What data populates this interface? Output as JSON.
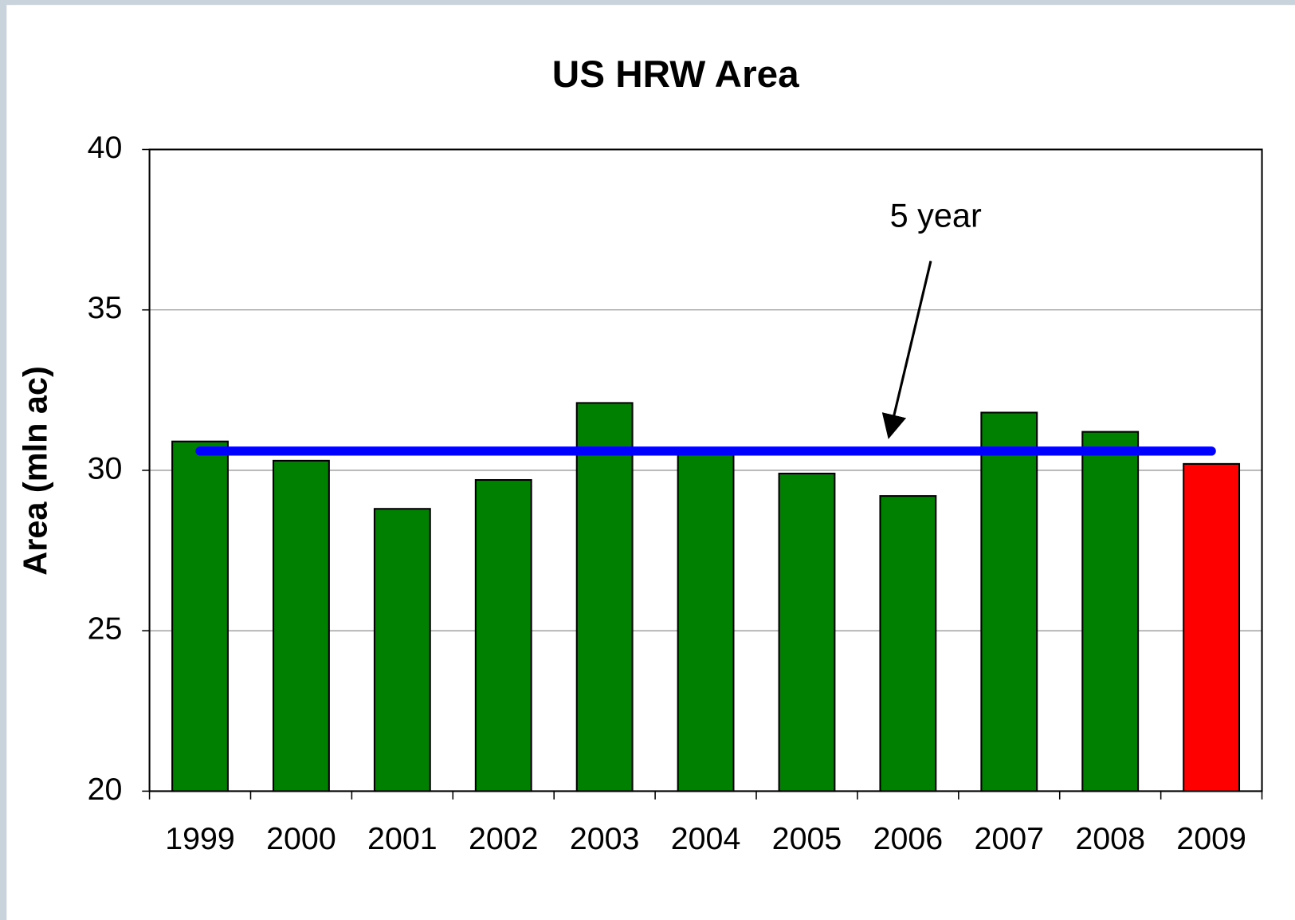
{
  "chart_data": {
    "type": "bar",
    "title": "US HRW Area",
    "y_label": "Area (mln ac)",
    "categories": [
      "1999",
      "2000",
      "2001",
      "2002",
      "2003",
      "2004",
      "2005",
      "2006",
      "2007",
      "2008",
      "2009"
    ],
    "values": [
      30.9,
      30.3,
      28.8,
      29.7,
      32.1,
      30.7,
      29.9,
      29.2,
      31.8,
      31.2,
      30.2
    ],
    "colors": [
      "#008000",
      "#008000",
      "#008000",
      "#008000",
      "#008000",
      "#008000",
      "#008000",
      "#008000",
      "#008000",
      "#008000",
      "#ff0000"
    ],
    "average": {
      "label": "5 year",
      "value": 30.6,
      "color": "#0000ff"
    },
    "ylim": [
      20,
      40
    ],
    "yticks": [
      20,
      25,
      30,
      35,
      40
    ],
    "grid": true
  }
}
